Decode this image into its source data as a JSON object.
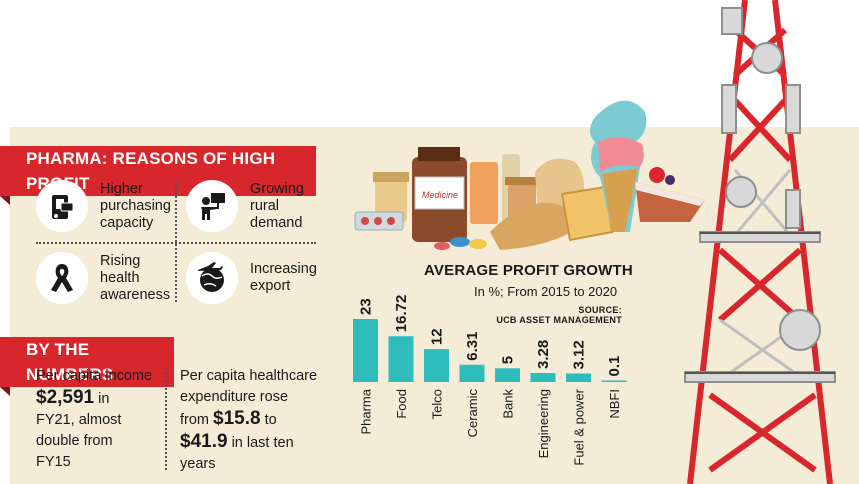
{
  "reasons": {
    "title": "PHARMA: REASONS OF HIGH PROFIT",
    "items": [
      {
        "l1": "Higher",
        "l2": "purchasing",
        "l3": "capacity",
        "icon": "card-phone-icon"
      },
      {
        "l1": "Growing",
        "l2": "rural",
        "l3": "demand",
        "icon": "person-sign-icon"
      },
      {
        "l1": "Rising",
        "l2": "health",
        "l3": "awareness",
        "icon": "ribbon-icon"
      },
      {
        "l1": "Increasing",
        "l2": "export",
        "l3": "",
        "icon": "globe-plane-icon"
      }
    ]
  },
  "numbers": {
    "title": "BY THE NUMBERS",
    "income": {
      "l1": "Per capita income",
      "value": "$2,591",
      "l2a": "in",
      "l3": "FY21, almost",
      "l4": "double from",
      "l5": "FY15"
    },
    "health": {
      "l1": "Per capita healthcare",
      "l2": "expenditure rose",
      "l3a": "from",
      "v1": "$15.8",
      "l3b": "to",
      "v2": "$41.9",
      "l4b": "in last ten",
      "l5": "years"
    }
  },
  "chart_data": {
    "type": "bar",
    "title": "AVERAGE PROFIT GROWTH",
    "subtitle": "In %; From 2015 to 2020",
    "source_l1": "SOURCE:",
    "source_l2": "UCB ASSET MANAGEMENT",
    "categories": [
      "Pharma",
      "Food",
      "Telco",
      "Ceramic",
      "Bank",
      "Engineering",
      "Fuel & power",
      "NBFI"
    ],
    "values": [
      23,
      16.72,
      12,
      6.31,
      5,
      3.28,
      3.12,
      0.1
    ],
    "value_labels": [
      "23",
      "16.72",
      "12",
      "6.31",
      "5",
      "3.28",
      "3.12",
      "0.1"
    ],
    "bar_color": "#2fbcbd"
  },
  "colors": {
    "accent": "#d7262c",
    "panel": "#f4ecd7",
    "teal": "#2fbcbd"
  }
}
